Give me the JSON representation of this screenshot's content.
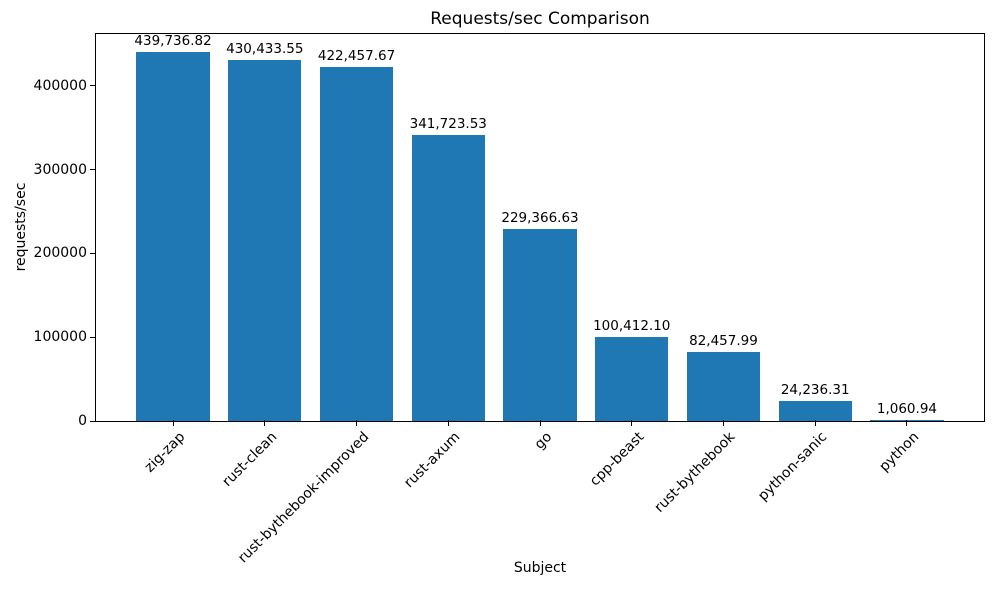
{
  "chart_data": {
    "type": "bar",
    "title": "Requests/sec Comparison",
    "xlabel": "Subject",
    "ylabel": "requests/sec",
    "categories": [
      "zig-zap",
      "rust-clean",
      "rust-bythebook-improved",
      "rust-axum",
      "go",
      "cpp-beast",
      "rust-bythebook",
      "python-sanic",
      "python"
    ],
    "values": [
      439736.82,
      430433.55,
      422457.67,
      341723.53,
      229366.63,
      100412.1,
      82457.99,
      24236.31,
      1060.94
    ],
    "value_labels": [
      "439,736.82",
      "430,433.55",
      "422,457.67",
      "341,723.53",
      "229,366.63",
      "100,412.10",
      "82,457.99",
      "24,236.31",
      "1,060.94"
    ],
    "y_ticks": [
      0,
      100000,
      200000,
      300000,
      400000
    ],
    "y_tick_labels": [
      "0",
      "100000",
      "200000",
      "300000",
      "400000"
    ],
    "ylim": [
      0,
      461723.66
    ],
    "bar_color": "#1f77b4",
    "bar_rel_width": 0.8,
    "grid": false,
    "legend": null
  }
}
